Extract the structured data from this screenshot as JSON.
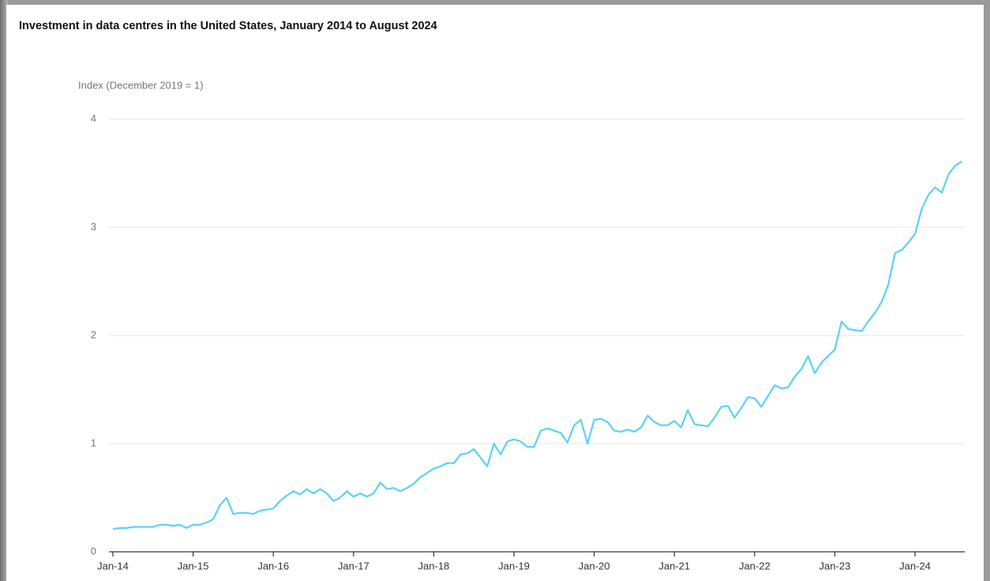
{
  "chart_data": {
    "type": "line",
    "title": "Investment in data centres in the United States, January 2014 to August 2024",
    "y_axis_label": "Index (December 2019 = 1)",
    "categories": [
      "Jan-14",
      null,
      null,
      null,
      null,
      null,
      null,
      null,
      null,
      null,
      null,
      null,
      "Jan-15",
      null,
      null,
      null,
      null,
      null,
      null,
      null,
      null,
      null,
      null,
      null,
      "Jan-16",
      null,
      null,
      null,
      null,
      null,
      null,
      null,
      null,
      null,
      null,
      null,
      "Jan-17",
      null,
      null,
      null,
      null,
      null,
      null,
      null,
      null,
      null,
      null,
      null,
      "Jan-18",
      null,
      null,
      null,
      null,
      null,
      null,
      null,
      null,
      null,
      null,
      null,
      "Jan-19",
      null,
      null,
      null,
      null,
      null,
      null,
      null,
      null,
      null,
      null,
      null,
      "Jan-20",
      null,
      null,
      null,
      null,
      null,
      null,
      null,
      null,
      null,
      null,
      null,
      "Jan-21",
      null,
      null,
      null,
      null,
      null,
      null,
      null,
      null,
      null,
      null,
      null,
      "Jan-22",
      null,
      null,
      null,
      null,
      null,
      null,
      null,
      null,
      null,
      null,
      null,
      "Jan-23",
      null,
      null,
      null,
      null,
      null,
      null,
      null,
      null,
      null,
      null,
      null,
      "Jan-24",
      null,
      null,
      null,
      null,
      null,
      null,
      null
    ],
    "values": [
      0.21,
      0.22,
      0.22,
      0.23,
      0.23,
      0.23,
      0.23,
      0.25,
      0.25,
      0.24,
      0.25,
      0.22,
      0.25,
      0.25,
      0.27,
      0.3,
      0.43,
      0.5,
      0.35,
      0.36,
      0.36,
      0.35,
      0.38,
      0.39,
      0.4,
      0.47,
      0.52,
      0.56,
      0.53,
      0.58,
      0.54,
      0.58,
      0.54,
      0.47,
      0.5,
      0.56,
      0.51,
      0.54,
      0.51,
      0.54,
      0.64,
      0.58,
      0.59,
      0.56,
      0.59,
      0.63,
      0.69,
      0.73,
      0.77,
      0.79,
      0.82,
      0.82,
      0.9,
      0.91,
      0.95,
      0.87,
      0.79,
      1.0,
      0.9,
      1.02,
      1.04,
      1.02,
      0.97,
      0.97,
      1.12,
      1.14,
      1.12,
      1.1,
      1.01,
      1.17,
      1.22,
      1.0,
      1.22,
      1.23,
      1.2,
      1.12,
      1.11,
      1.13,
      1.11,
      1.15,
      1.26,
      1.2,
      1.17,
      1.17,
      1.21,
      1.15,
      1.31,
      1.18,
      1.17,
      1.16,
      1.24,
      1.34,
      1.35,
      1.24,
      1.33,
      1.43,
      1.42,
      1.34,
      1.44,
      1.54,
      1.51,
      1.52,
      1.62,
      1.69,
      1.81,
      1.65,
      1.75,
      1.81,
      1.87,
      2.13,
      2.06,
      2.05,
      2.04,
      2.13,
      2.21,
      2.31,
      2.47,
      2.76,
      2.79,
      2.86,
      2.94,
      3.17,
      3.3,
      3.37,
      3.32,
      3.49,
      3.57,
      3.61
    ],
    "color": "#5bd2f7",
    "ylim": [
      0,
      4
    ],
    "yticks": [
      0,
      1,
      2,
      3,
      4
    ],
    "grid": true
  }
}
